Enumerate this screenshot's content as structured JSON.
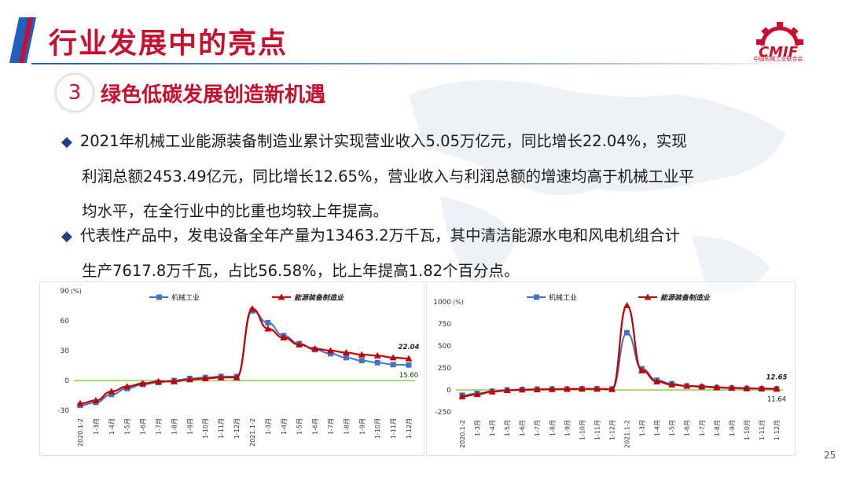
{
  "header": {
    "title": "行业发展中的亮点"
  },
  "logo": {
    "mark": "CMIF",
    "caption": "中国机械工业联合会"
  },
  "section": {
    "number": "3",
    "subtitle": "绿色低碳发展创造新机遇"
  },
  "paragraphs": [
    {
      "lines": [
        "2021年机械工业能源装备制造业累计实现营业收入5.05万亿元，同比增长22.04%，实现",
        "利润总额2453.49亿元，同比增长12.65%，营业收入与利润总额的增速均高于机械工业平",
        "均水平，在全行业中的比重也均较上年提高。"
      ]
    },
    {
      "lines": [
        "代表性产品中，发电设备全年产量为13463.2万千瓦，其中清洁能源水电和风电机组合计",
        "生产7617.8万千瓦，占比56.58%，比上年提高1.82个百分点。"
      ]
    }
  ],
  "page_number": "25",
  "chart_data": [
    {
      "type": "line",
      "unit_label": "(%)",
      "ylim": [
        -30,
        90
      ],
      "yticks": [
        -30,
        0,
        30,
        60,
        90
      ],
      "zero_line_color": "#8fd14f",
      "categories": [
        "2020.1-2",
        "1-3月",
        "1-4月",
        "1-5月",
        "1-6月",
        "1-7月",
        "1-8月",
        "1-9月",
        "1-10月",
        "1-11月",
        "1-12月",
        "2021.1-2",
        "1-3月",
        "1-4月",
        "1-5月",
        "1-6月",
        "1-7月",
        "1-8月",
        "1-9月",
        "1-10月",
        "1-11月",
        "1-12月"
      ],
      "series": [
        {
          "name": "机械工业",
          "color": "#4472c4",
          "marker": "square",
          "values": [
            -25,
            -22,
            -14,
            -8,
            -4,
            -2,
            0,
            2,
            3,
            4,
            4,
            70,
            58,
            45,
            37,
            31,
            27,
            23,
            20,
            18,
            16,
            15.6
          ],
          "end_label": "15.60"
        },
        {
          "name": "能源装备制造业",
          "color": "#c00000",
          "marker": "triangle",
          "values": [
            -23,
            -20,
            -11,
            -6,
            -3,
            -1,
            -1,
            1,
            2,
            3,
            3,
            72,
            52,
            43,
            36,
            32,
            30,
            28,
            26,
            25,
            23,
            22.04
          ],
          "end_label": "22.04"
        }
      ]
    },
    {
      "type": "line",
      "unit_label": "(%)",
      "ylim": [
        -250,
        1000
      ],
      "yticks": [
        -250,
        0,
        250,
        500,
        750,
        1000
      ],
      "zero_line_color": "#8fd14f",
      "categories": [
        "2020.1-2",
        "1-3月",
        "1-4月",
        "1-5月",
        "1-6月",
        "1-7月",
        "1-8月",
        "1-9月",
        "1-10月",
        "1-11月",
        "1-12月",
        "2021.1-2",
        "1-3月",
        "1-4月",
        "1-5月",
        "1-6月",
        "1-7月",
        "1-8月",
        "1-9月",
        "1-10月",
        "1-11月",
        "1-12月"
      ],
      "series": [
        {
          "name": "机械工业",
          "color": "#4472c4",
          "marker": "square",
          "values": [
            -60,
            -40,
            -15,
            0,
            5,
            8,
            10,
            10,
            12,
            12,
            10,
            650,
            240,
            110,
            70,
            45,
            35,
            25,
            20,
            15,
            13,
            11.64
          ],
          "end_label": "11.64"
        },
        {
          "name": "能源装备制造业",
          "color": "#c00000",
          "marker": "triangle",
          "values": [
            -75,
            -50,
            -20,
            -5,
            2,
            5,
            8,
            10,
            12,
            12,
            8,
            960,
            220,
            95,
            60,
            45,
            40,
            30,
            25,
            20,
            17,
            12.65
          ],
          "end_label": "12.65"
        }
      ]
    }
  ]
}
